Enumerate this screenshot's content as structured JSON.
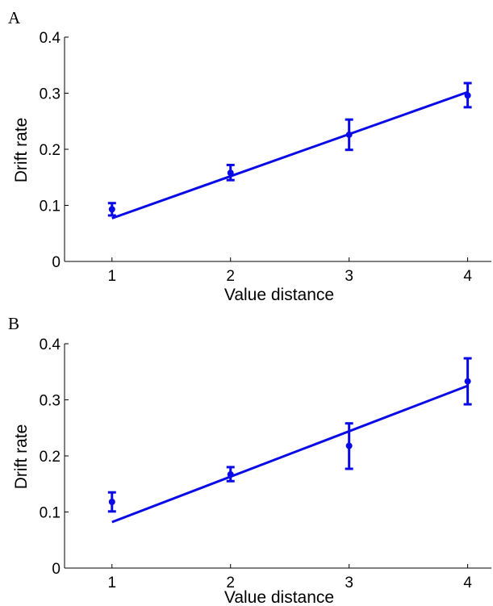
{
  "chart_data": [
    {
      "panel_label": "A",
      "type": "line",
      "xlabel": "Value distance",
      "ylabel": "Drift rate",
      "xlim": [
        0.6,
        4.2
      ],
      "ylim": [
        0,
        0.4
      ],
      "x_ticks": [
        1,
        2,
        3,
        4
      ],
      "y_ticks": [
        0,
        0.1,
        0.2,
        0.3,
        0.4
      ],
      "x_tick_labels": [
        "1",
        "2",
        "3",
        "4"
      ],
      "y_tick_labels": [
        "0",
        "0.1",
        "0.2",
        "0.3",
        "0.4"
      ],
      "grid": false,
      "color": "#0a0ae6",
      "points": {
        "x": [
          1,
          2,
          3,
          4
        ],
        "y": [
          0.093,
          0.158,
          0.226,
          0.296
        ],
        "err_low": [
          0.082,
          0.145,
          0.199,
          0.275
        ],
        "err_high": [
          0.104,
          0.172,
          0.253,
          0.318
        ]
      },
      "fit_line": {
        "x": [
          1,
          4
        ],
        "y": [
          0.077,
          0.302
        ]
      }
    },
    {
      "panel_label": "B",
      "type": "line",
      "xlabel": "Value distance",
      "ylabel": "Drift rate",
      "xlim": [
        0.6,
        4.2
      ],
      "ylim": [
        0,
        0.4
      ],
      "x_ticks": [
        1,
        2,
        3,
        4
      ],
      "y_ticks": [
        0,
        0.1,
        0.2,
        0.3,
        0.4
      ],
      "x_tick_labels": [
        "1",
        "2",
        "3",
        "4"
      ],
      "y_tick_labels": [
        "0",
        "0.1",
        "0.2",
        "0.3",
        "0.4"
      ],
      "grid": false,
      "color": "#0a0ae6",
      "points": {
        "x": [
          1,
          2,
          3,
          4
        ],
        "y": [
          0.118,
          0.167,
          0.218,
          0.333
        ],
        "err_low": [
          0.101,
          0.155,
          0.177,
          0.292
        ],
        "err_high": [
          0.135,
          0.18,
          0.258,
          0.374
        ]
      },
      "fit_line": {
        "x": [
          1,
          4
        ],
        "y": [
          0.082,
          0.325
        ]
      }
    }
  ]
}
